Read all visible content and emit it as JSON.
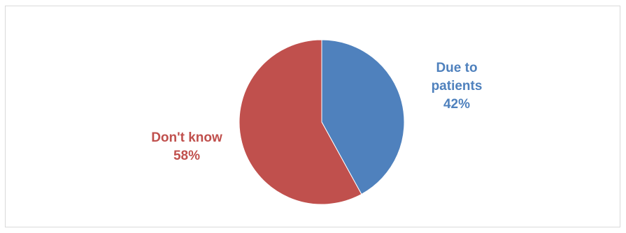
{
  "chart_data": {
    "type": "pie",
    "title": "",
    "slices": [
      {
        "name": "Due to patients",
        "label_lines": [
          "Due to",
          "patients"
        ],
        "value": 42,
        "percent_label": "42%",
        "color": "#4f81bd"
      },
      {
        "name": "Don't know",
        "label_lines": [
          "Don't know"
        ],
        "value": 58,
        "percent_label": "58%",
        "color": "#c0504d"
      }
    ],
    "legend": "none",
    "data_labels": "outside"
  }
}
